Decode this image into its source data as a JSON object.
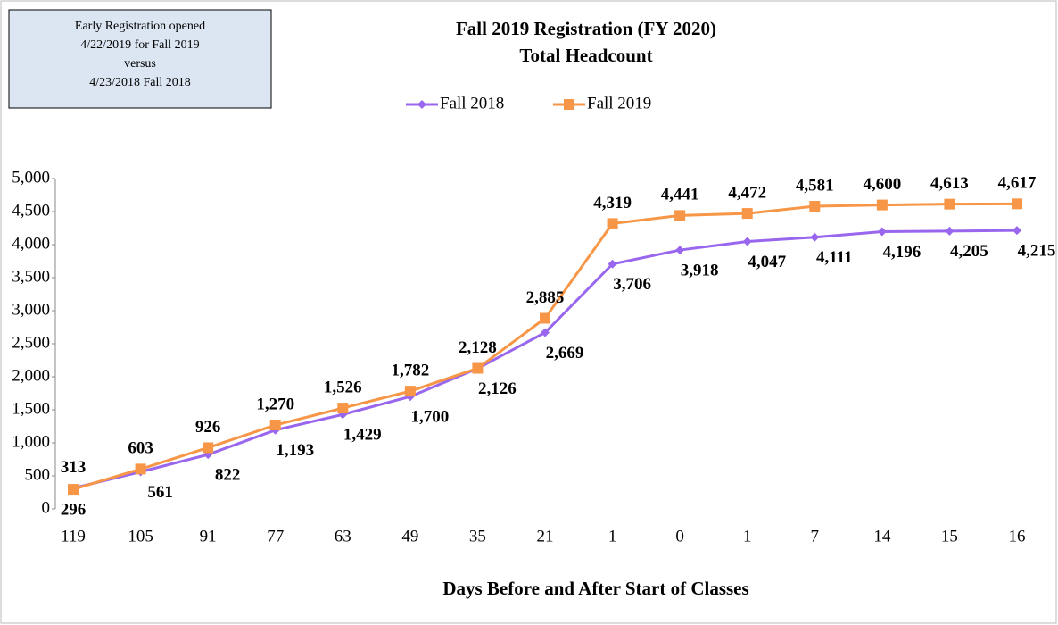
{
  "chart_data": {
    "type": "line",
    "title": "Fall 2019 Registration (FY 2020)",
    "subtitle": "Total Headcount",
    "annotation": [
      "Early Registration opened",
      "4/22/2019  for Fall 2019",
      "versus",
      "4/23/2018  Fall 2018"
    ],
    "x_label": "Days Before and After Start of Classes",
    "categories": [
      "119",
      "105",
      "91",
      "77",
      "63",
      "49",
      "35",
      "21",
      "1",
      "0",
      "1",
      "7",
      "14",
      "15",
      "16"
    ],
    "series": [
      {
        "name": "Fall 2018",
        "color": "#9966ee",
        "marker": "diamond",
        "values": [
          313,
          561,
          822,
          1193,
          1429,
          1700,
          2126,
          2669,
          3706,
          3918,
          4047,
          4111,
          4196,
          4205,
          4215
        ],
        "value_labels": [
          "313",
          "561",
          "822",
          "1,193",
          "1,429",
          "1,700",
          "2,126",
          "2,669",
          "3,706",
          "3,918",
          "4,047",
          "4,111",
          "4,196",
          "4,205",
          "4,215"
        ]
      },
      {
        "name": "Fall 2019",
        "color": "#f79646",
        "marker": "square",
        "values": [
          296,
          603,
          926,
          1270,
          1526,
          1782,
          2128,
          2885,
          4319,
          4441,
          4472,
          4581,
          4600,
          4613,
          4617
        ],
        "value_labels": [
          "296",
          "603",
          "926",
          "1,270",
          "1,526",
          "1,782",
          "2,128",
          "2,885",
          "4,319",
          "4,441",
          "4,472",
          "4,581",
          "4,600",
          "4,613",
          "4,617"
        ]
      }
    ],
    "ylim": [
      0,
      5000
    ],
    "yticks": [
      0,
      500,
      {
        "value": 1000,
        "label": "1,000"
      },
      {
        "value": 1500,
        "label": "1,500"
      },
      {
        "value": 2000,
        "label": "2,000"
      },
      {
        "value": 2500,
        "label": "2,500"
      },
      {
        "value": 3000,
        "label": "3,000"
      },
      {
        "value": 3500,
        "label": "3,500"
      },
      {
        "value": 4000,
        "label": "4,000"
      },
      {
        "value": 4500,
        "label": "4,500"
      },
      {
        "value": 5000,
        "label": "5,000"
      }
    ],
    "legend": "top"
  }
}
